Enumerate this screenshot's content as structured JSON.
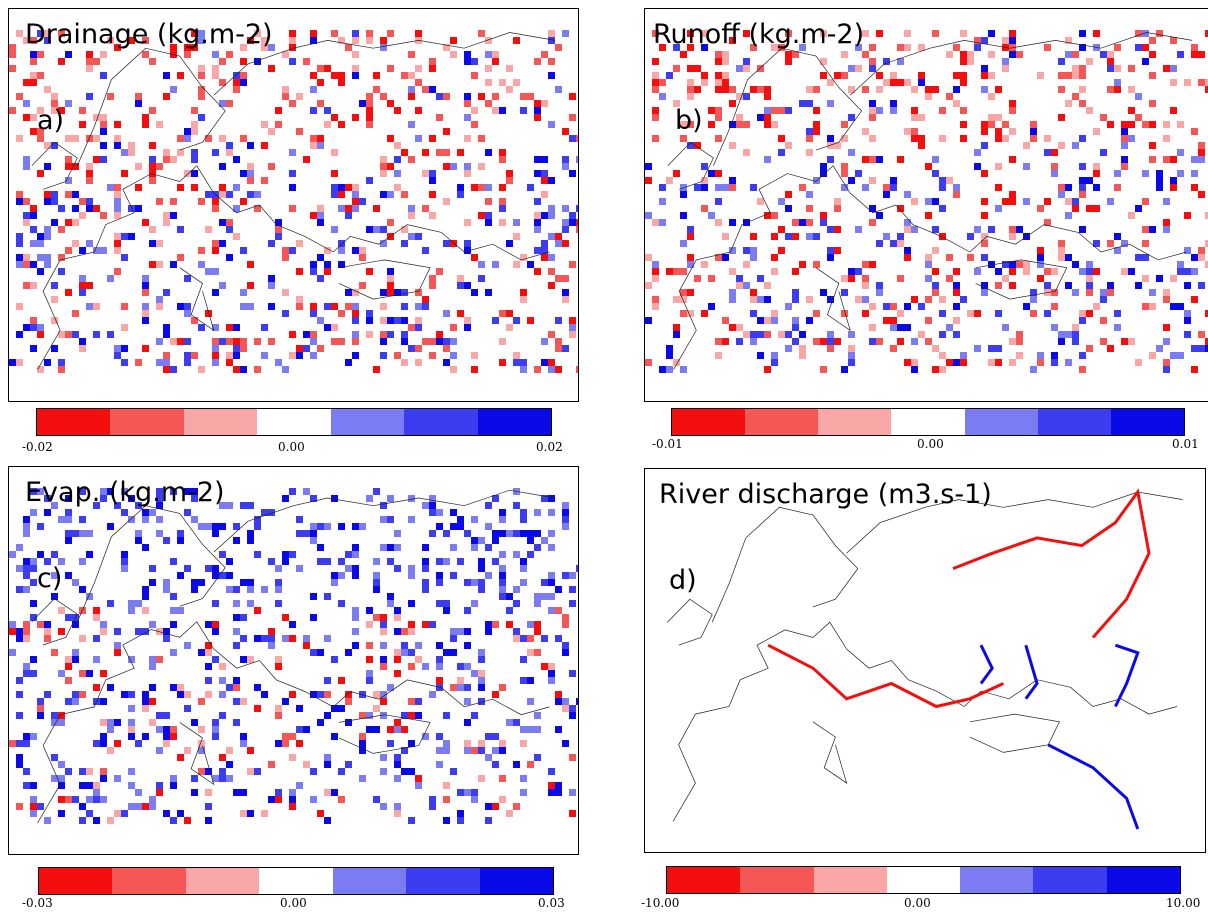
{
  "palette": {
    "bins": [
      "#f40e0e",
      "#f55656",
      "#f8a6a6",
      "#ffffff",
      "#7b7bf2",
      "#3c3cf0",
      "#0a0ae8"
    ],
    "land_outline": "#222222",
    "border_lines": "#9a9a9a"
  },
  "panels": [
    {
      "title": "Drainage (kg.m-2)",
      "letter": "a)",
      "colorbar": {
        "min": "-0.02",
        "mid": "0.00",
        "max": "0.02",
        "value_range": [
          -0.02,
          0.02
        ]
      }
    },
    {
      "title": "Runoff (kg.m-2)",
      "letter": "b)",
      "colorbar": {
        "min": "-0.01",
        "mid": "0.00",
        "max": "0.01",
        "value_range": [
          -0.01,
          0.01
        ]
      }
    },
    {
      "title": "Evap. (kg.m-2)",
      "letter": "c)",
      "colorbar": {
        "min": "-0.03",
        "mid": "0.00",
        "max": "0.03",
        "value_range": [
          -0.03,
          0.03
        ]
      }
    },
    {
      "title": "River discharge (m3.s-1)",
      "letter": "d)",
      "colorbar": {
        "min": "-10.00",
        "mid": "0.00",
        "max": "10.00",
        "value_range": [
          -10.0,
          10.0
        ]
      }
    }
  ]
}
